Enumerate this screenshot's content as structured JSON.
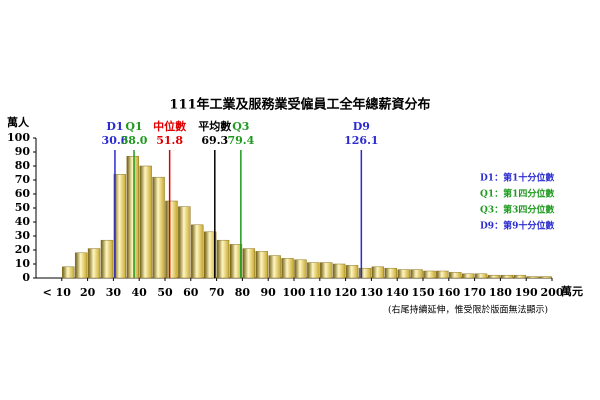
{
  "chart_data": {
    "type": "histogram",
    "title": "111年工業及服務業受僱員工全年總薪資分布",
    "y_label": "萬人",
    "x_unit": "萬元",
    "note": "(右尾持續延伸，惟受限於版面無法顯示)",
    "color": "#c8a830",
    "bins": [
      10,
      15,
      20,
      25,
      30,
      35,
      40,
      45,
      50,
      55,
      60,
      65,
      70,
      75,
      80,
      85,
      90,
      95,
      100,
      105,
      110,
      115,
      120,
      125,
      130,
      135,
      140,
      145,
      150,
      155,
      160,
      165,
      170,
      175,
      180,
      185,
      190,
      195,
      200
    ],
    "values": [
      8,
      18,
      21,
      27,
      74,
      87,
      80,
      72,
      55,
      51,
      38,
      33,
      27,
      24,
      21,
      19,
      16,
      14,
      13,
      11,
      11,
      10,
      9,
      7,
      8,
      7,
      6,
      6,
      5,
      5,
      4,
      3,
      3,
      2,
      2,
      2,
      1,
      1
    ],
    "xlim": [
      0,
      200
    ],
    "xticks": [
      {
        "value": 10,
        "label": "< 10"
      },
      20,
      30,
      40,
      50,
      60,
      70,
      80,
      90,
      100,
      110,
      120,
      130,
      140,
      150,
      160,
      170,
      180,
      190,
      200
    ],
    "ylim": [
      0,
      100
    ],
    "yticks": [
      0,
      10,
      20,
      30,
      40,
      50,
      60,
      70,
      80,
      90,
      100
    ],
    "markers": {
      "names": [
        "D1",
        "Q1",
        "中位數",
        "平均數",
        "Q3",
        "D9"
      ],
      "values": [
        30.6,
        38.0,
        51.8,
        69.3,
        79.4,
        126.1
      ],
      "value_labels": [
        "30.6",
        "38.0",
        "51.8",
        "69.3",
        "79.4",
        "126.1"
      ],
      "colors": [
        "#2b2bd0",
        "#1e9a1e",
        "#e00000",
        "#000000",
        "#1e9a1e",
        "#2b2bd0"
      ]
    },
    "legend": {
      "texts": [
        "D1：第1十分位數",
        "Q1：第1四分位數",
        "Q3：第3四分位數",
        "D9：第9十分位數"
      ],
      "colors": [
        "#2b2bd0",
        "#1e9a1e",
        "#1e9a1e",
        "#2b2bd0"
      ]
    }
  }
}
